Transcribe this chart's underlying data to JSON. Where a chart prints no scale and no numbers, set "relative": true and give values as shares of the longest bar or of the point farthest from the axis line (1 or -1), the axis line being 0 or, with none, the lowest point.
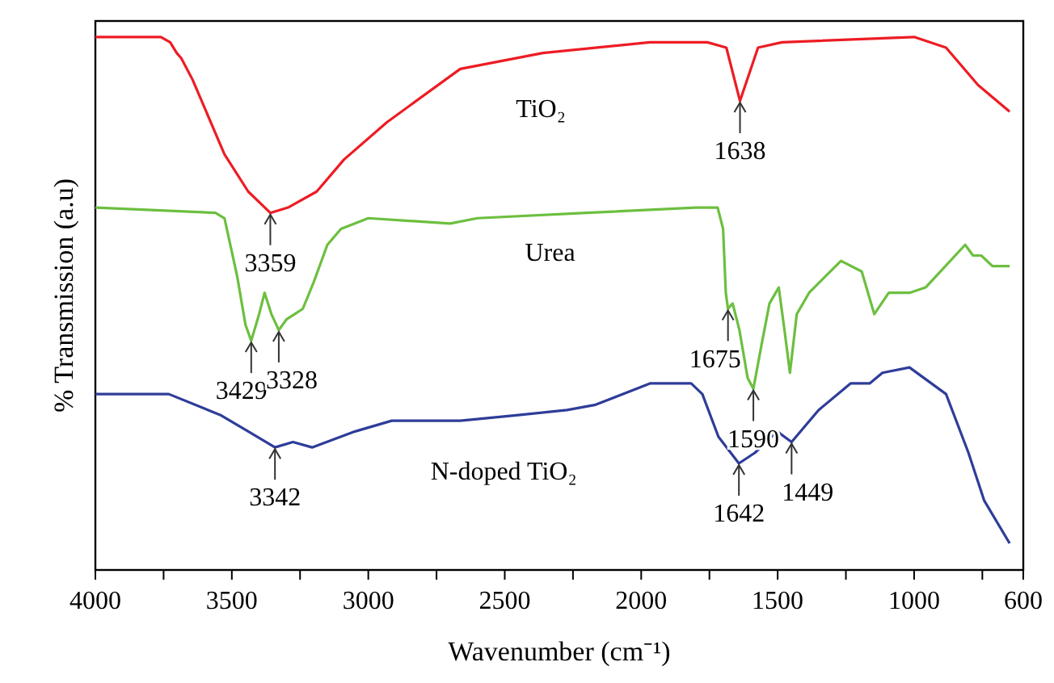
{
  "chart_data": {
    "type": "line",
    "relative": true,
    "xlabel": "Wavenumber (cm⁻¹)",
    "ylabel": "% Transmission (a.u)",
    "xlim": [
      4000,
      600
    ],
    "xticks": [
      4000,
      {
        "value": 3750,
        "label": null
      },
      3500,
      {
        "value": 3250,
        "label": null
      },
      3000,
      {
        "value": 2750,
        "label": null
      },
      2500,
      {
        "value": 2250,
        "label": null
      },
      2000,
      {
        "value": 1750,
        "label": null
      },
      1500,
      {
        "value": 1250,
        "label": null
      },
      1000,
      {
        "value": 750,
        "label": null
      },
      600
    ],
    "grid": false,
    "legend": false,
    "tick_labels": "x",
    "line_style": "solid",
    "marker": "none",
    "series": [
      {
        "name": "TiO₂",
        "color": "#ed1c24",
        "x": [
          4000,
          3760,
          3726,
          3702,
          3685,
          3644,
          3527,
          3440,
          3359,
          3294,
          3189,
          3089,
          2932,
          2663,
          2360,
          1968,
          1758,
          1688,
          1638,
          1572,
          1484,
          1000,
          883,
          766,
          650
        ],
        "values": [
          1.0,
          1.0,
          0.99,
          0.97,
          0.96,
          0.92,
          0.78,
          0.71,
          0.67,
          0.68,
          0.71,
          0.77,
          0.84,
          0.94,
          0.97,
          0.99,
          0.99,
          0.98,
          0.88,
          0.98,
          0.99,
          1.0,
          0.98,
          0.91,
          0.86
        ]
      },
      {
        "name": "Urea",
        "color": "#6cbf3f",
        "x": [
          4000,
          3560,
          3527,
          3480,
          3450,
          3429,
          3400,
          3380,
          3355,
          3328,
          3300,
          3270,
          3240,
          3200,
          3150,
          3100,
          3000,
          2700,
          2600,
          2200,
          1800,
          1720,
          1700,
          1690,
          1682,
          1665,
          1640,
          1610,
          1589,
          1560,
          1530,
          1496,
          1475,
          1455,
          1430,
          1385,
          1268,
          1192,
          1146,
          1093,
          1017,
          958,
          813,
          784,
          754,
          713,
          650
        ],
        "values": [
          0.68,
          0.67,
          0.66,
          0.55,
          0.46,
          0.43,
          0.48,
          0.52,
          0.48,
          0.45,
          0.47,
          0.48,
          0.49,
          0.54,
          0.61,
          0.64,
          0.66,
          0.65,
          0.66,
          0.67,
          0.68,
          0.68,
          0.64,
          0.52,
          0.49,
          0.5,
          0.45,
          0.36,
          0.34,
          0.42,
          0.5,
          0.53,
          0.45,
          0.37,
          0.48,
          0.52,
          0.58,
          0.56,
          0.48,
          0.52,
          0.52,
          0.53,
          0.61,
          0.59,
          0.59,
          0.57,
          0.57
        ]
      },
      {
        "name": "N-doped TiO₂",
        "color": "#2e3d98",
        "x": [
          4000,
          3731,
          3539,
          3440,
          3342,
          3276,
          3206,
          3048,
          2914,
          2663,
          2465,
          2272,
          2167,
          1968,
          1817,
          1776,
          1717,
          1642,
          1583,
          1502,
          1449,
          1350,
          1233,
          1163,
          1116,
          1017,
          883,
          801,
          743,
          650
        ],
        "values": [
          0.33,
          0.33,
          0.29,
          0.26,
          0.23,
          0.24,
          0.23,
          0.26,
          0.28,
          0.28,
          0.29,
          0.3,
          0.31,
          0.35,
          0.35,
          0.33,
          0.25,
          0.2,
          0.22,
          0.26,
          0.24,
          0.3,
          0.35,
          0.35,
          0.37,
          0.38,
          0.33,
          0.22,
          0.13,
          0.05
        ]
      }
    ],
    "annotations": [
      {
        "text": "3359",
        "x": 3359,
        "y": 0.67
      },
      {
        "text": "1638",
        "x": 1638,
        "y": 0.88
      },
      {
        "text": "3429",
        "x": 3429,
        "y": 0.43
      },
      {
        "text": "3328",
        "x": 3328,
        "y": 0.45
      },
      {
        "text": "1675",
        "x": 1682,
        "y": 0.49
      },
      {
        "text": "1590",
        "x": 1589,
        "y": 0.34
      },
      {
        "text": "3342",
        "x": 3342,
        "y": 0.23
      },
      {
        "text": "1642",
        "x": 1642,
        "y": 0.2
      },
      {
        "text": "1449",
        "x": 1449,
        "y": 0.24
      }
    ]
  }
}
